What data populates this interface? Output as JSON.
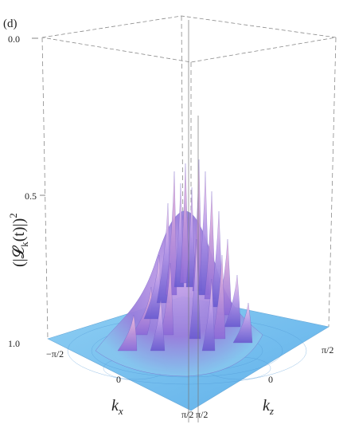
{
  "chart_data": {
    "type": "surface3d",
    "panel_label": "(d)",
    "zlabel": "(|𝓛",
    "zlabel_sub": "k",
    "zlabel_tail": "(t)|)",
    "zlabel_sup": "2",
    "xlabel": "k",
    "xlabel_sub": "x",
    "ylabel": "k",
    "ylabel_sub": "z",
    "z_ticks": [
      "0.0",
      "0.5",
      "1.0"
    ],
    "zlim": [
      1.0,
      0.0
    ],
    "z_axis_inverted": true,
    "kx_ticks": [
      "−π/2",
      "0",
      "π/2"
    ],
    "kz_ticks": [
      "π/2",
      "0",
      "π/2"
    ],
    "kx_range": [
      -1.5708,
      1.5708
    ],
    "kz_range": [
      -1.5708,
      1.5708
    ],
    "plateau_value": 1.0,
    "central_dip_min": 0.0,
    "colors": {
      "surface_low": "#7fc4ee",
      "surface_mid": "#8a6fd6",
      "surface_high": "#f2b8d8",
      "box": "#888888"
    }
  }
}
